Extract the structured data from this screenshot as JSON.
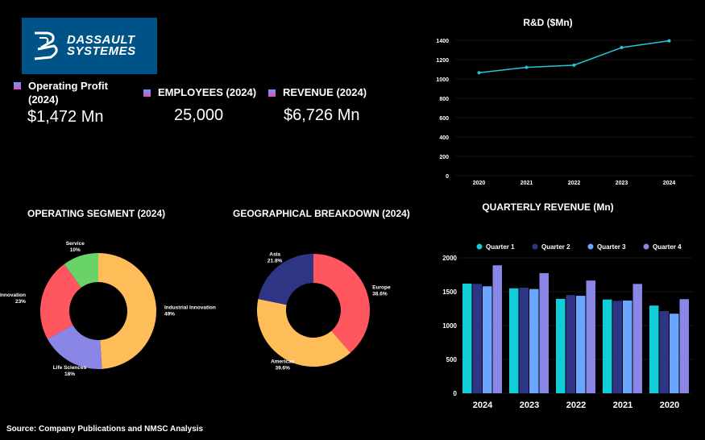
{
  "logo": {
    "line1": "DASSAULT",
    "line2": "SYSTEMES"
  },
  "kpis": {
    "operating_profit": {
      "label": "Operating Profit (2024)",
      "value": "$1,472 Mn"
    },
    "employees": {
      "label": "EMPLOYEES (2024)",
      "value": "25,000"
    },
    "revenue": {
      "label": "REVENUE (2024)",
      "value": "$6,726 Mn"
    }
  },
  "titles": {
    "segment": "OPERATING SEGMENT (2024)",
    "geo": "GEOGRAPHICAL BREAKDOWN (2024)",
    "rd": "R&D ($Mn)",
    "quarterly": "QUARTERLY REVENUE (Mn)"
  },
  "source": "Source: Company Publications and NMSC Analysis",
  "chart_data": [
    {
      "id": "rd",
      "type": "line",
      "title": "R&D ($Mn)",
      "x": [
        "2020",
        "2021",
        "2022",
        "2023",
        "2024"
      ],
      "values": [
        1065,
        1120,
        1143,
        1325,
        1395
      ],
      "ylim": [
        0,
        1400
      ],
      "yticks": [
        0,
        200,
        400,
        600,
        800,
        1000,
        1200,
        1400
      ],
      "color": "#22c7d4"
    },
    {
      "id": "segment",
      "type": "pie",
      "title": "OPERATING SEGMENT (2024)",
      "slices": [
        {
          "name": "Industrial Innovation",
          "pct": "49%",
          "value": 49,
          "color": "#ffbd5a"
        },
        {
          "name": "Life Sciences",
          "pct": "18%",
          "value": 18,
          "color": "#8a86e8"
        },
        {
          "name": "Mainstream Innovation",
          "pct": "23%",
          "value": 23,
          "color": "#ff5660"
        },
        {
          "name": "Service",
          "pct": "10%",
          "value": 10,
          "color": "#69d36a"
        }
      ]
    },
    {
      "id": "geo",
      "type": "pie",
      "title": "GEOGRAPHICAL BREAKDOWN (2024)",
      "slices": [
        {
          "name": "Europe",
          "pct": "38.6%",
          "value": 38.6,
          "color": "#ff5660"
        },
        {
          "name": "Americas",
          "pct": "39.6%",
          "value": 39.6,
          "color": "#ffbd5a"
        },
        {
          "name": "Asia",
          "pct": "21.8%",
          "value": 21.8,
          "color": "#2e3585"
        }
      ]
    },
    {
      "id": "quarterly",
      "type": "bar",
      "title": "QUARTERLY REVENUE (Mn)",
      "categories": [
        "2024",
        "2023",
        "2022",
        "2021",
        "2020"
      ],
      "series": [
        {
          "name": "Quarter 1",
          "color": "#10cdd8",
          "values": [
            1620,
            1550,
            1395,
            1385,
            1295
          ]
        },
        {
          "name": "Quarter 2",
          "color": "#2e3585",
          "values": [
            1615,
            1560,
            1450,
            1365,
            1215
          ]
        },
        {
          "name": "Quarter 3",
          "color": "#6aa5ff",
          "values": [
            1580,
            1540,
            1440,
            1370,
            1175
          ]
        },
        {
          "name": "Quarter 4",
          "color": "#8a86e8",
          "values": [
            1890,
            1775,
            1665,
            1615,
            1390
          ]
        }
      ],
      "ylim": [
        0,
        2000
      ],
      "yticks": [
        0,
        500,
        1000,
        1500,
        2000
      ]
    }
  ]
}
